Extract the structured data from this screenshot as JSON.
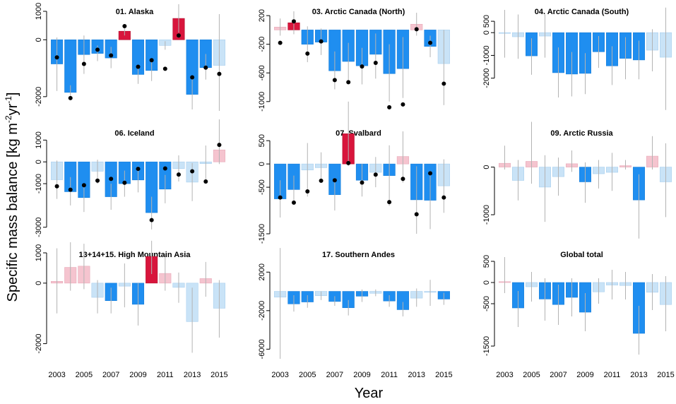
{
  "figure": {
    "ylabel_main": "Specific mass balance [kg m",
    "ylabel_sup1": "-2",
    "ylabel_mid": "yr",
    "ylabel_sup2": "-1",
    "ylabel_end": "]",
    "xlabel": "Year"
  },
  "colors": {
    "strong_negative": "#1f8ef0",
    "weak_negative": "#c9e3f7",
    "strong_positive": "#d8153c",
    "weak_positive": "#f5c4cf",
    "error_bar": "#b3b3b3",
    "point": "#000000"
  },
  "chart_data": [
    {
      "type": "bar",
      "title": "01. Alaska",
      "xlabel": "",
      "ylabel": "",
      "x": [
        2003,
        2004,
        2005,
        2006,
        2007,
        2008,
        2009,
        2010,
        2011,
        2012,
        2013,
        2014,
        2015
      ],
      "values": [
        -850,
        -1850,
        -520,
        -480,
        -640,
        300,
        -1220,
        -1080,
        -200,
        750,
        -1920,
        -980,
        -900
      ],
      "errors": [
        [
          -1800,
          80
        ],
        [
          -2050,
          -1600
        ],
        [
          -1200,
          150
        ],
        [
          -750,
          -200
        ],
        [
          -1000,
          -250
        ],
        [
          150,
          450
        ],
        [
          -1550,
          -900
        ],
        [
          -1450,
          -700
        ],
        [
          -350,
          -50
        ],
        [
          250,
          1250
        ],
        [
          -2450,
          -1300
        ],
        [
          -1400,
          -500
        ],
        [
          -2500,
          900
        ]
      ],
      "points": [
        -620,
        -2050,
        -850,
        -350,
        -550,
        480,
        -950,
        -720,
        -1020,
        150,
        -1320,
        -980,
        -1200
      ],
      "shade": [
        "s",
        "s",
        "s",
        "s",
        "s",
        "s",
        "s",
        "s",
        "w",
        "s",
        "s",
        "s",
        "w"
      ],
      "ylim": [
        -2550,
        1050
      ],
      "yticks": [
        -2000,
        0,
        1000
      ]
    },
    {
      "type": "bar",
      "title": "03. Arctic Canada (North)",
      "xlabel": "",
      "ylabel": "",
      "x": [
        2003,
        2004,
        2005,
        2006,
        2007,
        2008,
        2009,
        2010,
        2011,
        2012,
        2013,
        2014,
        2015
      ],
      "values": [
        40,
        100,
        -200,
        -170,
        -570,
        -440,
        -500,
        -340,
        -610,
        -540,
        80,
        -230,
        -470
      ],
      "errors": [
        [
          -80,
          160
        ],
        [
          -60,
          260
        ],
        [
          -450,
          50
        ],
        [
          -350,
          20
        ],
        [
          -830,
          -300
        ],
        [
          -700,
          -180
        ],
        [
          -760,
          -250
        ],
        [
          -680,
          -50
        ],
        [
          -1000,
          -200
        ],
        [
          -950,
          -100
        ],
        [
          -80,
          240
        ],
        [
          -380,
          -80
        ],
        [
          -1050,
          0
        ]
      ],
      "points": [
        -180,
        120,
        -330,
        -160,
        -700,
        -730,
        -510,
        -460,
        -1080,
        -1040,
        10,
        -180,
        -750
      ],
      "shade": [
        "w",
        "s",
        "s",
        "s",
        "s",
        "s",
        "s",
        "s",
        "s",
        "s",
        "w",
        "s",
        "w"
      ],
      "ylim": [
        -1150,
        280
      ],
      "yticks": [
        -1000,
        -600,
        -200,
        200
      ]
    },
    {
      "type": "bar",
      "title": "04. Arctic Canada (South)",
      "xlabel": "",
      "ylabel": "",
      "x": [
        2003,
        2004,
        2005,
        2006,
        2007,
        2008,
        2009,
        2010,
        2011,
        2012,
        2013,
        2014,
        2015
      ],
      "values": [
        -20,
        -180,
        -1020,
        -150,
        -1760,
        -1820,
        -1790,
        -840,
        -1460,
        -1130,
        -1200,
        -770,
        -1080
      ],
      "errors": [
        [
          -1100,
          1000
        ],
        [
          -1150,
          800
        ],
        [
          -1850,
          -250
        ],
        [
          -1100,
          800
        ],
        [
          -2850,
          -650
        ],
        [
          -2800,
          -850
        ],
        [
          -2700,
          -900
        ],
        [
          -1550,
          -150
        ],
        [
          -2300,
          -600
        ],
        [
          -2050,
          -200
        ],
        [
          -2050,
          -350
        ],
        [
          -1700,
          150
        ],
        [
          -3400,
          1100
        ]
      ],
      "points": [
        null,
        null,
        null,
        null,
        null,
        null,
        null,
        null,
        null,
        null,
        null,
        null,
        null
      ],
      "shade": [
        "w",
        "w",
        "s",
        "w",
        "s",
        "s",
        "s",
        "s",
        "s",
        "s",
        "s",
        "w",
        "w"
      ],
      "ylim": [
        -3500,
        1000
      ],
      "yticks": [
        -2000,
        -1000,
        0,
        500
      ]
    },
    {
      "type": "bar",
      "title": "06. Iceland",
      "xlabel": "",
      "ylabel": "",
      "x": [
        2003,
        2004,
        2005,
        2006,
        2007,
        2008,
        2009,
        2010,
        2011,
        2012,
        2013,
        2014,
        2015
      ],
      "values": [
        -820,
        -1370,
        -1640,
        -430,
        -1600,
        -1000,
        -830,
        -2330,
        -1250,
        -310,
        -930,
        -80,
        550
      ],
      "errors": [
        [
          -1700,
          60
        ],
        [
          -2000,
          -700
        ],
        [
          -2300,
          -1000
        ],
        [
          -1000,
          100
        ],
        [
          -2200,
          -1000
        ],
        [
          -1600,
          -400
        ],
        [
          -1400,
          -200
        ],
        [
          -3100,
          -1600
        ],
        [
          -1900,
          -600
        ],
        [
          -900,
          300
        ],
        [
          -1800,
          -50
        ],
        [
          -900,
          750
        ],
        [
          -100,
          1950
        ]
      ],
      "points": [
        -1120,
        -1280,
        -1070,
        -860,
        -780,
        -960,
        -320,
        -2670,
        -300,
        -580,
        -430,
        -900,
        780
      ],
      "shade": [
        "w",
        "s",
        "s",
        "w",
        "s",
        "s",
        "s",
        "s",
        "s",
        "w",
        "w",
        "w",
        "w"
      ],
      "ylim": [
        -3300,
        1400
      ],
      "yticks": [
        -3000,
        -1000,
        0,
        1000
      ]
    },
    {
      "type": "bar",
      "title": "07. Svalbard",
      "xlabel": "",
      "ylabel": "",
      "x": [
        2003,
        2004,
        2005,
        2006,
        2007,
        2008,
        2009,
        2010,
        2011,
        2012,
        2013,
        2014,
        2015
      ],
      "values": [
        -750,
        -550,
        -130,
        -80,
        -660,
        650,
        -350,
        -180,
        -250,
        160,
        -770,
        -780,
        -470
      ],
      "errors": [
        [
          -1150,
          -350
        ],
        [
          -850,
          -250
        ],
        [
          -700,
          450
        ],
        [
          -400,
          250
        ],
        [
          -1000,
          -300
        ],
        [
          -40,
          1340
        ],
        [
          -700,
          0
        ],
        [
          -500,
          150
        ],
        [
          -900,
          400
        ],
        [
          -400,
          700
        ],
        [
          -1500,
          -50
        ],
        [
          -1400,
          -150
        ],
        [
          -1050,
          100
        ]
      ],
      "points": [
        -830,
        -590,
        -360,
        -350,
        20,
        -400,
        -230,
        -820,
        -320,
        -1080,
        -200,
        -720,
        -720
      ],
      "pointsX": [
        2004,
        2005,
        2006,
        2007,
        2008,
        2009,
        2010,
        2011,
        2012,
        2013,
        2014,
        2015,
        2003
      ],
      "shade": [
        "s",
        "s",
        "w",
        "w",
        "s",
        "s",
        "s",
        "w",
        "s",
        "w",
        "s",
        "s",
        "w"
      ],
      "ylim": [
        -1500,
        700
      ],
      "yticks": [
        -1500,
        -500,
        0,
        500
      ]
    },
    {
      "type": "bar",
      "title": "09. Arctic Russia",
      "xlabel": "",
      "ylabel": "",
      "x": [
        2003,
        2004,
        2005,
        2006,
        2007,
        2008,
        2009,
        2010,
        2011,
        2012,
        2013,
        2014,
        2015
      ],
      "values": [
        80,
        -280,
        120,
        -420,
        -200,
        70,
        -310,
        -140,
        -110,
        30,
        -690,
        230,
        -310
      ],
      "errors": [
        [
          -50,
          450
        ],
        [
          -700,
          150
        ],
        [
          -350,
          950
        ],
        [
          -1150,
          250
        ],
        [
          -600,
          200
        ],
        [
          -100,
          350
        ],
        [
          -750,
          100
        ],
        [
          -450,
          150
        ],
        [
          -500,
          300
        ],
        [
          -50,
          150
        ],
        [
          -1500,
          -150
        ],
        [
          -50,
          650
        ],
        [
          -1050,
          500
        ]
      ],
      "points": [
        null,
        null,
        null,
        null,
        null,
        null,
        null,
        null,
        null,
        null,
        null,
        null,
        null
      ],
      "shade": [
        "w",
        "w",
        "w",
        "w",
        "w",
        "w",
        "s",
        "w",
        "w",
        "w",
        "s",
        "w",
        "w"
      ],
      "ylim": [
        -1400,
        750
      ],
      "yticks": [
        -1000,
        0
      ]
    },
    {
      "type": "bar",
      "title": "13+14+15. High Mountain Asia",
      "xlabel": "",
      "ylabel": "",
      "x": [
        2003,
        2004,
        2005,
        2006,
        2007,
        2008,
        2009,
        2010,
        2011,
        2012,
        2013,
        2014,
        2015
      ],
      "values": [
        60,
        520,
        560,
        -470,
        -580,
        -100,
        -700,
        880,
        320,
        -140,
        -1270,
        150,
        -830
      ],
      "errors": [
        [
          -1000,
          1150
        ],
        [
          -250,
          1350
        ],
        [
          -200,
          1300
        ],
        [
          -1000,
          100
        ],
        [
          -1000,
          -150
        ],
        [
          -800,
          650
        ],
        [
          -1400,
          0
        ],
        [
          300,
          1400
        ],
        [
          -250,
          950
        ],
        [
          -650,
          350
        ],
        [
          -2300,
          -150
        ],
        [
          -450,
          700
        ],
        [
          -1800,
          100
        ]
      ],
      "points": [
        null,
        null,
        null,
        null,
        null,
        null,
        null,
        null,
        null,
        null,
        null,
        null,
        null
      ],
      "shade": [
        "w",
        "w",
        "w",
        "w",
        "s",
        "w",
        "s",
        "s",
        "w",
        "w",
        "w",
        "w",
        "w"
      ],
      "ylim": [
        -2500,
        1000
      ],
      "yticks": [
        -2000,
        0,
        1000
      ]
    },
    {
      "type": "bar",
      "title": "17. Southern Andes",
      "xlabel": "",
      "ylabel": "",
      "x": [
        2003,
        2004,
        2005,
        2006,
        2007,
        2008,
        2009,
        2010,
        2011,
        2012,
        2013,
        2014,
        2015
      ],
      "values": [
        -600,
        -1300,
        -1100,
        -450,
        -1050,
        -1700,
        -500,
        -200,
        -1000,
        -1900,
        -700,
        -100,
        -800
      ],
      "errors": [
        [
          -7000,
          4500
        ],
        [
          -2100,
          -400
        ],
        [
          -1700,
          -400
        ],
        [
          -900,
          0
        ],
        [
          -1500,
          -500
        ],
        [
          -2500,
          -900
        ],
        [
          -1100,
          200
        ],
        [
          -500,
          200
        ],
        [
          -1600,
          -400
        ],
        [
          -2600,
          -1100
        ],
        [
          -1600,
          300
        ],
        [
          -1500,
          1200
        ],
        [
          -1400,
          -150
        ]
      ],
      "points": [
        null,
        null,
        null,
        null,
        null,
        null,
        null,
        null,
        null,
        null,
        null,
        null,
        null
      ],
      "shade": [
        "w",
        "s",
        "s",
        "w",
        "s",
        "s",
        "s",
        "w",
        "s",
        "s",
        "w",
        "w",
        "s"
      ],
      "ylim": [
        -7000,
        4000
      ],
      "yticks": [
        -6000,
        -2000,
        2000
      ]
    },
    {
      "type": "bar",
      "title": "Global total",
      "xlabel": "",
      "ylabel": "",
      "x": [
        2003,
        2004,
        2005,
        2006,
        2007,
        2008,
        2009,
        2010,
        2011,
        2012,
        2013,
        2014,
        2015
      ],
      "values": [
        20,
        -600,
        -100,
        -390,
        -520,
        -350,
        -700,
        -220,
        -60,
        -70,
        -1200,
        -230,
        -520
      ],
      "errors": [
        [
          -250,
          600
        ],
        [
          -1050,
          -200
        ],
        [
          -450,
          250
        ],
        [
          -900,
          100
        ],
        [
          -1000,
          -50
        ],
        [
          -800,
          100
        ],
        [
          -1150,
          -250
        ],
        [
          -500,
          100
        ],
        [
          -400,
          300
        ],
        [
          -400,
          250
        ],
        [
          -1700,
          -550
        ],
        [
          -650,
          200
        ],
        [
          -1150,
          150
        ]
      ],
      "points": [
        null,
        null,
        null,
        null,
        null,
        null,
        null,
        null,
        null,
        null,
        null,
        null,
        null
      ],
      "shade": [
        "w",
        "s",
        "w",
        "s",
        "s",
        "s",
        "s",
        "w",
        "w",
        "w",
        "s",
        "w",
        "w"
      ],
      "ylim": [
        -1800,
        700
      ],
      "yticks": [
        -1500,
        -500,
        0,
        500
      ]
    }
  ],
  "x_axes": [
    {
      "ticks": [
        "2003",
        "2005",
        "2007",
        "2009",
        "2011",
        "2013",
        "2015"
      ]
    },
    {
      "ticks": [
        "2003",
        "2005",
        "2007",
        "2009",
        "2011",
        "2013",
        "2015"
      ]
    },
    {
      "ticks": [
        "2003",
        "2005",
        "2007",
        "2009",
        "2011",
        "2013",
        "2015"
      ]
    }
  ]
}
